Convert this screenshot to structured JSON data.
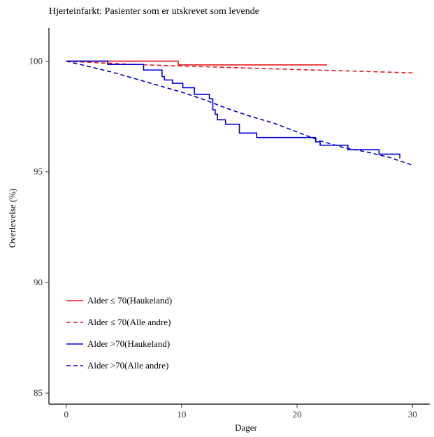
{
  "chart_data": {
    "type": "line",
    "title": "Hjerteinfarkt: Pasienter som er utskrevet som levende",
    "xlabel": "Dager",
    "ylabel": "Overlevelse (%)",
    "xlim": [
      -1.5,
      31.5
    ],
    "ylim": [
      84.5,
      101.5
    ],
    "xticks": [
      0,
      10,
      20,
      30
    ],
    "yticks": [
      85,
      90,
      95,
      100
    ],
    "grid": false,
    "legend_position": "bottom-left",
    "series": [
      {
        "name": "Alder ≤ 70(Haukeland)",
        "color": "#e41a1c",
        "dash": "solid",
        "step": true,
        "x": [
          0,
          3,
          9.7,
          22.6
        ],
        "y": [
          100,
          100,
          99.83,
          99.83
        ]
      },
      {
        "name": "Alder ≤ 70(Alle andre)",
        "color": "#e41a1c",
        "dash": "dashed",
        "step": false,
        "x": [
          0,
          3,
          6,
          10,
          15,
          20,
          25,
          30
        ],
        "y": [
          100,
          99.92,
          99.85,
          99.78,
          99.7,
          99.62,
          99.55,
          99.47
        ]
      },
      {
        "name": "Alder >70(Haukeland)",
        "color": "#0000cc",
        "dash": "solid",
        "step": true,
        "x": [
          0,
          3.6,
          6.7,
          8.3,
          8.5,
          9.2,
          10.1,
          11.1,
          12.4,
          12.7,
          12.9,
          13.1,
          13.8,
          15.0,
          16.5,
          21.6,
          22.0,
          24.4,
          27.1,
          28.9
        ],
        "y": [
          100,
          99.85,
          99.6,
          99.3,
          99.15,
          99.0,
          98.8,
          98.5,
          98.3,
          97.8,
          97.6,
          97.35,
          97.15,
          96.75,
          96.55,
          96.35,
          96.2,
          96.0,
          95.8,
          95.6
        ]
      },
      {
        "name": "Alder >70(Alle andre)",
        "color": "#0000cc",
        "dash": "dashed",
        "step": false,
        "x": [
          0,
          2,
          4,
          6,
          8,
          10,
          12,
          14,
          16,
          18,
          20,
          22,
          24,
          26,
          28,
          30
        ],
        "y": [
          100,
          99.75,
          99.5,
          99.2,
          98.9,
          98.6,
          98.25,
          97.85,
          97.5,
          97.2,
          96.8,
          96.4,
          96.1,
          95.9,
          95.65,
          95.3
        ]
      }
    ]
  }
}
